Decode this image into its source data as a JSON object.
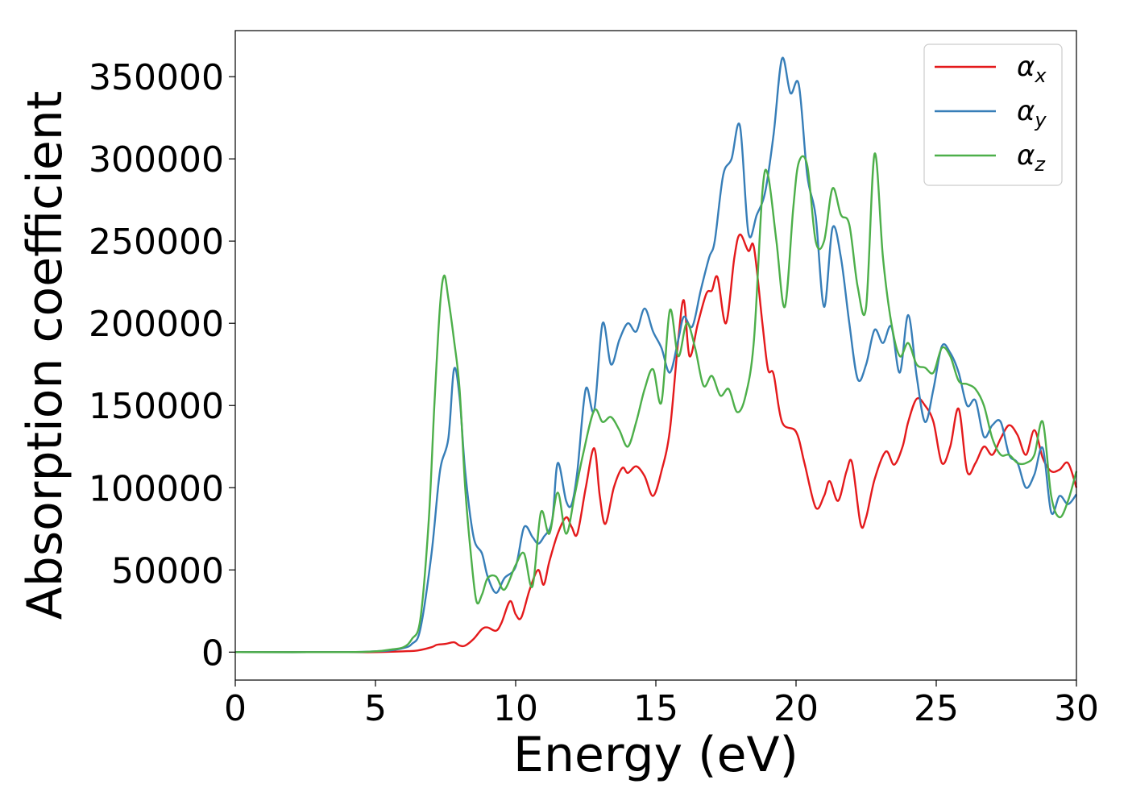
{
  "chart_data": {
    "type": "line",
    "xlabel": "Energy (eV)",
    "ylabel": "Absorption coefficient",
    "xlim": [
      0,
      30
    ],
    "ylim": [
      -17000,
      378000
    ],
    "xticks": [
      0,
      5,
      10,
      15,
      20,
      25,
      30
    ],
    "yticks": [
      0,
      50000,
      100000,
      150000,
      200000,
      250000,
      300000,
      350000
    ],
    "grid": false,
    "legend_position": "top-right",
    "series": [
      {
        "name": "α",
        "subscript": "x",
        "color": "#e41a1c",
        "x": [
          0,
          4,
          5,
          6,
          6.5,
          7,
          7.2,
          7.5,
          7.8,
          8.0,
          8.2,
          8.5,
          8.8,
          9.0,
          9.3,
          9.5,
          9.8,
          10.0,
          10.2,
          10.5,
          10.8,
          11.0,
          11.2,
          11.5,
          11.8,
          12.0,
          12.2,
          12.5,
          12.8,
          13.0,
          13.2,
          13.5,
          13.8,
          14.0,
          14.3,
          14.6,
          14.9,
          15.2,
          15.5,
          15.8,
          16.0,
          16.2,
          16.5,
          16.8,
          17.0,
          17.2,
          17.5,
          17.8,
          18.0,
          18.3,
          18.5,
          18.8,
          19.0,
          19.2,
          19.5,
          20.0,
          20.3,
          20.7,
          21.0,
          21.2,
          21.5,
          21.8,
          22.0,
          22.3,
          22.5,
          22.8,
          23.2,
          23.5,
          23.8,
          24.0,
          24.3,
          24.6,
          24.9,
          25.2,
          25.5,
          25.8,
          26.1,
          26.4,
          26.7,
          27.0,
          27.3,
          27.6,
          27.9,
          28.2,
          28.5,
          28.8,
          29.1,
          29.4,
          29.7,
          30.0
        ],
        "y": [
          0,
          0,
          0,
          500,
          1000,
          3000,
          4500,
          5000,
          6000,
          4000,
          4000,
          8000,
          14000,
          15000,
          13000,
          18000,
          31000,
          23000,
          21000,
          38000,
          50000,
          41000,
          55000,
          72000,
          82000,
          76000,
          72000,
          100000,
          124000,
          95000,
          78000,
          100000,
          112000,
          109000,
          113000,
          107000,
          95000,
          110000,
          135000,
          190000,
          214000,
          180000,
          200000,
          218000,
          220000,
          228000,
          200000,
          240000,
          254000,
          244000,
          246000,
          200000,
          172000,
          169000,
          140000,
          134000,
          115000,
          88000,
          95000,
          104000,
          92000,
          110000,
          115000,
          78000,
          82000,
          105000,
          122000,
          114000,
          125000,
          140000,
          154000,
          150000,
          140000,
          115000,
          125000,
          148000,
          110000,
          115000,
          125000,
          120000,
          130000,
          138000,
          132000,
          120000,
          135000,
          118000,
          110000,
          111000,
          115000,
          100000
        ]
      },
      {
        "name": "α",
        "subscript": "y",
        "color": "#377eb8",
        "x": [
          0,
          4,
          5,
          5.5,
          6,
          6.3,
          6.6,
          7.0,
          7.3,
          7.6,
          7.8,
          8.0,
          8.2,
          8.5,
          8.8,
          9.0,
          9.3,
          9.6,
          10.0,
          10.3,
          10.6,
          10.8,
          11.0,
          11.3,
          11.5,
          11.8,
          12.0,
          12.2,
          12.5,
          12.8,
          13.1,
          13.4,
          13.7,
          14.0,
          14.3,
          14.6,
          14.9,
          15.2,
          15.5,
          15.8,
          16.0,
          16.3,
          16.6,
          16.9,
          17.1,
          17.4,
          17.7,
          18.0,
          18.3,
          18.6,
          18.9,
          19.2,
          19.5,
          19.8,
          20.1,
          20.4,
          20.7,
          21.0,
          21.3,
          21.6,
          21.9,
          22.2,
          22.5,
          22.8,
          23.1,
          23.4,
          23.7,
          24.0,
          24.3,
          24.6,
          24.9,
          25.2,
          25.5,
          25.8,
          26.1,
          26.4,
          26.7,
          27.0,
          27.3,
          27.6,
          27.9,
          28.2,
          28.5,
          28.8,
          29.1,
          29.4,
          29.7,
          30.0
        ],
        "y": [
          0,
          0,
          500,
          1000,
          2500,
          5000,
          14000,
          60000,
          110000,
          130000,
          172000,
          155000,
          110000,
          70000,
          60000,
          46000,
          36000,
          45000,
          52000,
          76000,
          70000,
          66000,
          70000,
          80000,
          115000,
          92000,
          90000,
          110000,
          160000,
          147000,
          200000,
          175000,
          190000,
          200000,
          195000,
          209000,
          195000,
          185000,
          170000,
          190000,
          204000,
          198000,
          220000,
          240000,
          250000,
          290000,
          300000,
          320000,
          255000,
          266000,
          280000,
          315000,
          361000,
          340000,
          345000,
          290000,
          265000,
          210000,
          258000,
          240000,
          200000,
          166000,
          175000,
          196000,
          188000,
          198000,
          170000,
          205000,
          168000,
          140000,
          160000,
          186000,
          182000,
          170000,
          150000,
          153000,
          131000,
          138000,
          140000,
          120000,
          115000,
          100000,
          108000,
          124000,
          85000,
          95000,
          90000,
          96000
        ]
      },
      {
        "name": "α",
        "subscript": "z",
        "color": "#4daf4a",
        "x": [
          0,
          4,
          5,
          5.5,
          6,
          6.3,
          6.6,
          6.9,
          7.1,
          7.3,
          7.45,
          7.6,
          7.8,
          8.0,
          8.2,
          8.4,
          8.6,
          8.8,
          9.0,
          9.3,
          9.6,
          10.0,
          10.3,
          10.6,
          10.9,
          11.2,
          11.5,
          11.8,
          12.1,
          12.4,
          12.8,
          13.1,
          13.4,
          13.7,
          14.0,
          14.3,
          14.6,
          14.9,
          15.2,
          15.5,
          15.8,
          16.1,
          16.4,
          16.7,
          17.0,
          17.3,
          17.6,
          17.9,
          18.2,
          18.5,
          18.8,
          19.0,
          19.3,
          19.6,
          19.9,
          20.1,
          20.4,
          20.7,
          21.0,
          21.3,
          21.6,
          21.9,
          22.2,
          22.5,
          22.8,
          23.1,
          23.4,
          23.7,
          24.0,
          24.3,
          24.6,
          24.9,
          25.2,
          25.5,
          25.8,
          26.1,
          26.4,
          26.7,
          27.0,
          27.3,
          27.6,
          27.9,
          28.2,
          28.5,
          28.8,
          29.1,
          29.4,
          29.7,
          30.0
        ],
        "y": [
          0,
          0,
          500,
          1500,
          3000,
          8000,
          20000,
          80000,
          150000,
          210000,
          229000,
          215000,
          190000,
          160000,
          100000,
          60000,
          31000,
          35000,
          45000,
          46000,
          38000,
          53000,
          60000,
          40000,
          85000,
          72000,
          97000,
          72000,
          95000,
          120000,
          147000,
          140000,
          143000,
          135000,
          125000,
          140000,
          160000,
          172000,
          152000,
          208000,
          180000,
          200000,
          185000,
          162000,
          168000,
          156000,
          160000,
          146000,
          156000,
          190000,
          280000,
          290000,
          250000,
          210000,
          270000,
          298000,
          296000,
          250000,
          250000,
          282000,
          266000,
          260000,
          222000,
          210000,
          303000,
          240000,
          200000,
          180000,
          188000,
          175000,
          173000,
          170000,
          185000,
          180000,
          165000,
          163000,
          160000,
          150000,
          130000,
          120000,
          120000,
          115000,
          115000,
          120000,
          140000,
          95000,
          82000,
          92000,
          110000
        ]
      }
    ]
  }
}
